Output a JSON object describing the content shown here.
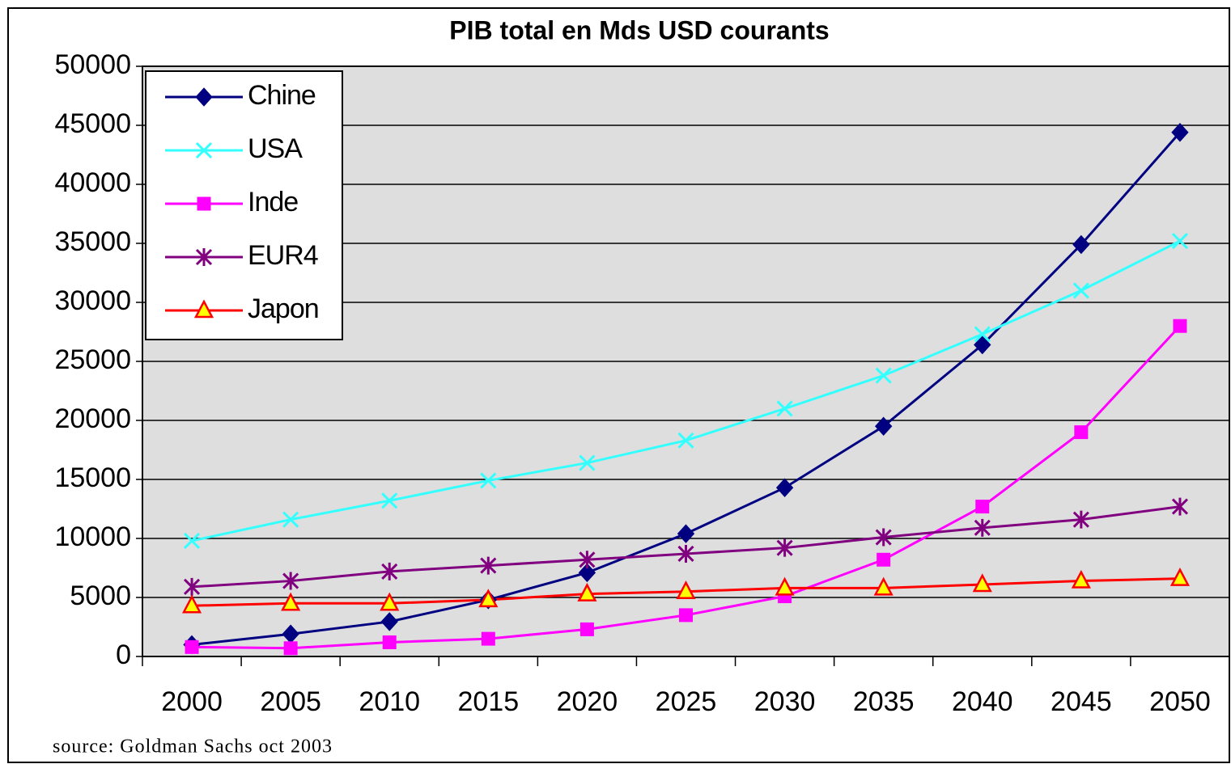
{
  "chart_data": {
    "type": "line",
    "title": "PIB total en Mds USD courants",
    "source": "source: Goldman Sachs oct 2003",
    "categories": [
      "2000",
      "2005",
      "2010",
      "2015",
      "2020",
      "2025",
      "2030",
      "2035",
      "2040",
      "2045",
      "2050"
    ],
    "series": [
      {
        "name": "Chine",
        "color": "#000080",
        "marker": "diamond",
        "values": [
          1000,
          1900,
          2950,
          4800,
          7100,
          10400,
          14300,
          19500,
          26400,
          34900,
          44400
        ]
      },
      {
        "name": "USA",
        "color": "#33ffff",
        "marker": "x",
        "values": [
          9800,
          11600,
          13200,
          14900,
          16400,
          18300,
          21000,
          23800,
          27300,
          31000,
          35200
        ]
      },
      {
        "name": "Inde",
        "color": "#ff00ff",
        "marker": "square",
        "values": [
          800,
          700,
          1200,
          1500,
          2300,
          3500,
          5100,
          8200,
          12700,
          19000,
          28000
        ]
      },
      {
        "name": "EUR4",
        "color": "#800080",
        "marker": "star",
        "values": [
          5900,
          6400,
          7200,
          7700,
          8200,
          8700,
          9200,
          10100,
          10900,
          11600,
          12700
        ]
      },
      {
        "name": "Japon",
        "color": "#ff0000",
        "marker": "triangle",
        "marker_fill": "#ffff00",
        "values": [
          4300,
          4500,
          4500,
          4800,
          5300,
          5500,
          5800,
          5800,
          6100,
          6400,
          6600
        ]
      }
    ],
    "ylim": [
      0,
      50000
    ],
    "yticks": [
      0,
      5000,
      10000,
      15000,
      20000,
      25000,
      30000,
      35000,
      40000,
      45000,
      50000
    ],
    "grid": true,
    "legend": "top-left",
    "background": "#dedede"
  }
}
